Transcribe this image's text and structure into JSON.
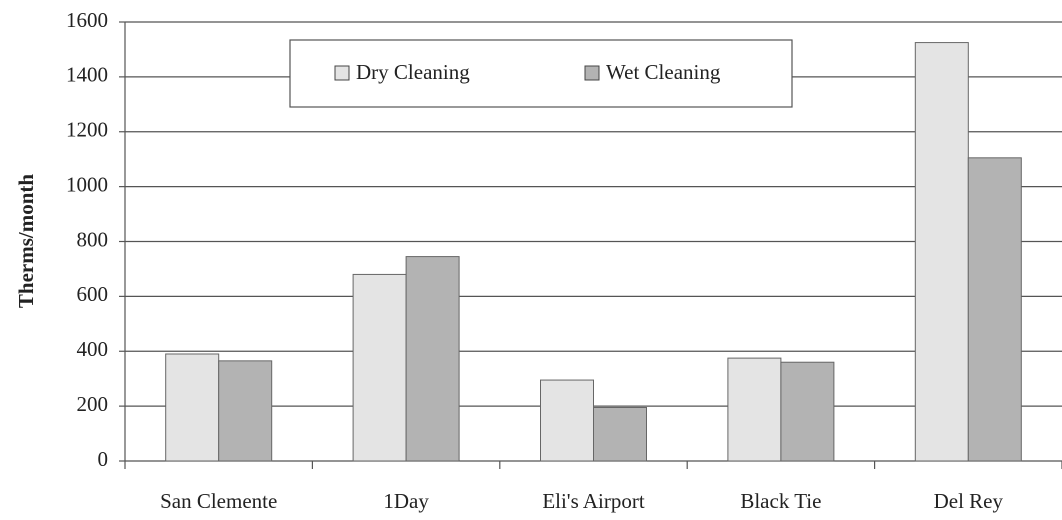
{
  "chart_data": {
    "type": "bar",
    "y_label": "Therms/month",
    "categories": [
      "San Clemente",
      "1Day",
      "Eli's Airport",
      "Black Tie",
      "Del Rey"
    ],
    "series": [
      {
        "name": "Dry Cleaning",
        "color": "#e4e4e4",
        "values": [
          390,
          680,
          295,
          375,
          1525
        ]
      },
      {
        "name": "Wet Cleaning",
        "color": "#b3b3b3",
        "values": [
          365,
          745,
          195,
          360,
          1105
        ]
      }
    ],
    "ylim": [
      0,
      1600
    ],
    "yticks": [
      0,
      200,
      400,
      600,
      800,
      1000,
      1200,
      1400,
      1600
    ],
    "grid": true
  }
}
